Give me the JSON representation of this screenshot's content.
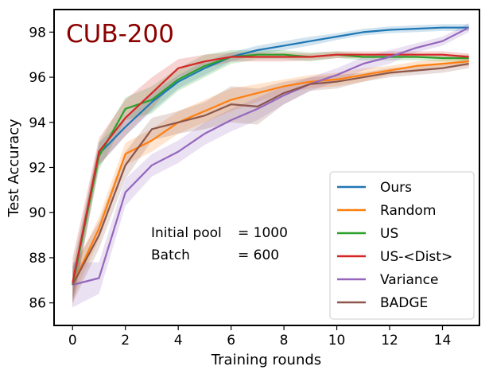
{
  "chart_data": {
    "type": "line",
    "title": "CUB-200",
    "title_color": "#8b0000",
    "xlabel": "Training rounds",
    "ylabel": "Test Accuracy",
    "xlim": [
      -0.7,
      15.4
    ],
    "ylim": [
      85.0,
      99.0
    ],
    "xticks": [
      0,
      2,
      4,
      6,
      8,
      10,
      12,
      14
    ],
    "yticks": [
      86,
      88,
      90,
      92,
      94,
      96,
      98
    ],
    "grid": false,
    "legend_position": "bottom-right",
    "annotation": {
      "line1_label": "Initial pool",
      "line1_value": "= 1000",
      "line2_label": "Batch",
      "line2_value": "= 600"
    },
    "x": [
      0,
      1,
      2,
      3,
      4,
      5,
      6,
      7,
      8,
      9,
      10,
      11,
      12,
      13,
      14,
      15
    ],
    "series": [
      {
        "name": "Ours",
        "color": "#1f77b4",
        "values": [
          86.8,
          92.6,
          93.8,
          94.9,
          95.8,
          96.4,
          96.9,
          97.2,
          97.4,
          97.6,
          97.8,
          98.0,
          98.1,
          98.15,
          98.2,
          98.2
        ],
        "band": [
          0.6,
          0.5,
          0.4,
          0.4,
          0.3,
          0.3,
          0.2,
          0.2,
          0.2,
          0.2,
          0.15,
          0.15,
          0.15,
          0.15,
          0.15,
          0.15
        ]
      },
      {
        "name": "Random",
        "color": "#ff7f0e",
        "values": [
          86.8,
          89.3,
          92.6,
          93.2,
          94.0,
          94.5,
          95.0,
          95.3,
          95.6,
          95.8,
          95.9,
          96.1,
          96.3,
          96.5,
          96.6,
          96.7
        ],
        "band": [
          0.6,
          0.5,
          0.5,
          0.5,
          0.5,
          0.5,
          0.5,
          0.4,
          0.3,
          0.3,
          0.3,
          0.3,
          0.2,
          0.2,
          0.2,
          0.2
        ]
      },
      {
        "name": "US",
        "color": "#2ca02c",
        "values": [
          86.8,
          92.5,
          94.6,
          95.0,
          95.9,
          96.5,
          96.9,
          97.0,
          97.0,
          96.9,
          97.0,
          96.9,
          96.9,
          96.9,
          96.85,
          96.85
        ],
        "band": [
          0.8,
          0.6,
          0.5,
          0.6,
          0.5,
          0.5,
          0.3,
          0.2,
          0.2,
          0.2,
          0.15,
          0.15,
          0.15,
          0.15,
          0.15,
          0.15
        ]
      },
      {
        "name": "US-<Dist>",
        "color": "#d62728",
        "values": [
          86.9,
          92.7,
          94.2,
          95.3,
          96.4,
          96.7,
          96.9,
          96.9,
          96.9,
          96.9,
          97.0,
          97.0,
          97.0,
          97.0,
          97.0,
          96.9
        ],
        "band": [
          1.1,
          0.6,
          0.8,
          0.7,
          0.4,
          0.3,
          0.2,
          0.2,
          0.2,
          0.15,
          0.15,
          0.15,
          0.15,
          0.15,
          0.15,
          0.15
        ]
      },
      {
        "name": "Variance",
        "color": "#9467bd",
        "values": [
          86.8,
          87.1,
          90.9,
          92.1,
          92.7,
          93.5,
          94.1,
          94.6,
          95.2,
          95.7,
          96.1,
          96.6,
          96.9,
          97.3,
          97.6,
          98.2
        ],
        "band": [
          1.0,
          0.7,
          0.6,
          0.5,
          0.5,
          0.5,
          0.5,
          0.5,
          0.4,
          0.3,
          0.3,
          0.3,
          0.3,
          0.2,
          0.2,
          0.2
        ]
      },
      {
        "name": "BADGE",
        "color": "#8c564b",
        "values": [
          86.8,
          89.0,
          92.1,
          93.7,
          94.0,
          94.3,
          94.8,
          94.7,
          95.3,
          95.7,
          95.8,
          96.0,
          96.2,
          96.3,
          96.4,
          96.6
        ],
        "band": [
          0.8,
          0.6,
          0.6,
          0.5,
          0.5,
          0.6,
          0.8,
          0.8,
          0.5,
          0.3,
          0.3,
          0.2,
          0.2,
          0.2,
          0.2,
          0.2
        ]
      }
    ]
  }
}
